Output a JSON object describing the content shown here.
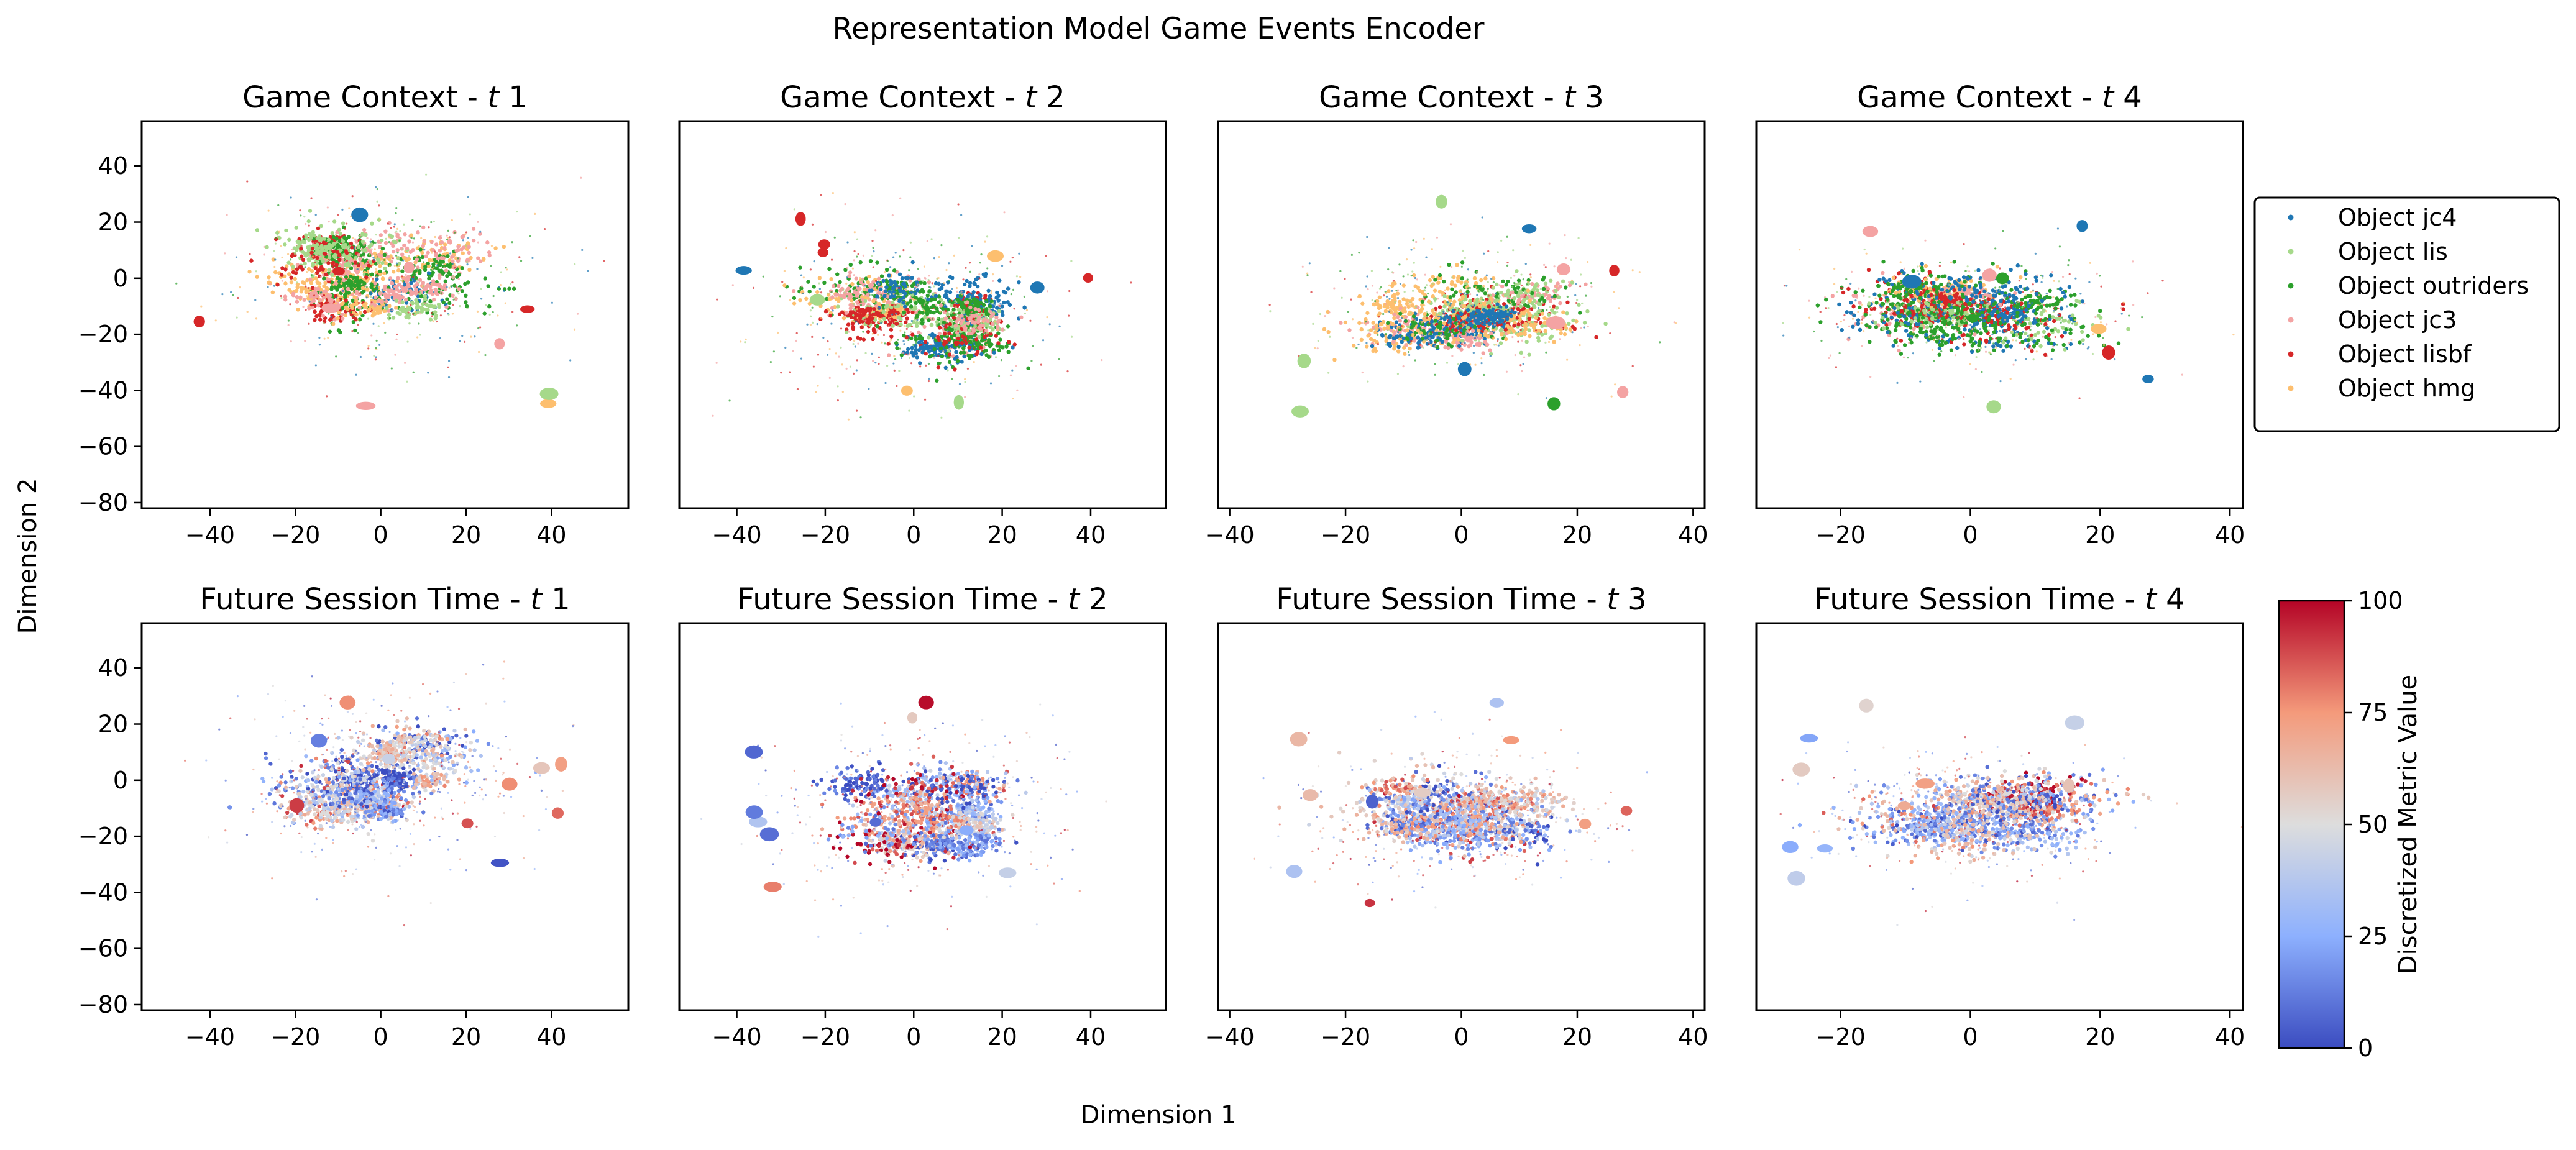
{
  "figure": {
    "title": "Representation Model Game Events Encoder",
    "xlabel": "Dimension 1",
    "ylabel": "Dimension 2"
  },
  "legend": {
    "placement": "right of top row",
    "entries": [
      {
        "label": "Object jc4",
        "color": "#1f77b4"
      },
      {
        "label": "Object lis",
        "color": "#a6d98a"
      },
      {
        "label": "Object outriders",
        "color": "#2ca02c"
      },
      {
        "label": "Object jc3",
        "color": "#f4a3a3"
      },
      {
        "label": "Object lisbf",
        "color": "#d62728"
      },
      {
        "label": "Object hmg",
        "color": "#fdbf6f"
      }
    ]
  },
  "colorbar": {
    "label": "Discretized Metric Value",
    "range": [
      0,
      100
    ],
    "ticks": [
      0,
      25,
      50,
      75,
      100
    ],
    "colormap": "coolwarm",
    "colors": [
      "#3b4cc0",
      "#aac7fd",
      "#dddddd",
      "#f7a889",
      "#b40426"
    ]
  },
  "chart_data": [
    {
      "type": "scatter",
      "title_prefix": "Game Context - ",
      "title_var": "t",
      "title_num": "1",
      "xlim": [
        -56,
        58
      ],
      "ylim": [
        -82,
        56
      ],
      "xticks": [
        -40,
        -20,
        0,
        20,
        40
      ],
      "yticks": [
        40,
        20,
        0,
        -20,
        -40,
        -60,
        -80
      ],
      "show_yticks": true,
      "color_mode": "category"
    },
    {
      "type": "scatter",
      "title_prefix": "Game Context - ",
      "title_var": "t",
      "title_num": "2",
      "xlim": [
        -53,
        57
      ],
      "ylim": [
        -82,
        56
      ],
      "xticks": [
        -40,
        -20,
        0,
        20,
        40
      ],
      "yticks": [],
      "show_yticks": false,
      "color_mode": "category"
    },
    {
      "type": "scatter",
      "title_prefix": "Game Context - ",
      "title_var": "t",
      "title_num": "3",
      "xlim": [
        -42,
        42
      ],
      "ylim": [
        -82,
        56
      ],
      "xticks": [
        -40,
        -20,
        0,
        20,
        40
      ],
      "yticks": [],
      "show_yticks": false,
      "color_mode": "category"
    },
    {
      "type": "scatter",
      "title_prefix": "Game Context - ",
      "title_var": "t",
      "title_num": "4",
      "xlim": [
        -33,
        42
      ],
      "ylim": [
        -82,
        56
      ],
      "xticks": [
        -20,
        0,
        20,
        40
      ],
      "yticks": [],
      "show_yticks": false,
      "color_mode": "category"
    },
    {
      "type": "scatter",
      "title_prefix": "Future Session Time - ",
      "title_var": "t",
      "title_num": "1",
      "xlim": [
        -56,
        58
      ],
      "ylim": [
        -82,
        56
      ],
      "xticks": [
        -40,
        -20,
        0,
        20,
        40
      ],
      "yticks": [
        40,
        20,
        0,
        -20,
        -40,
        -60,
        -80
      ],
      "show_yticks": true,
      "color_mode": "metric"
    },
    {
      "type": "scatter",
      "title_prefix": "Future Session Time - ",
      "title_var": "t",
      "title_num": "2",
      "xlim": [
        -53,
        57
      ],
      "ylim": [
        -82,
        56
      ],
      "xticks": [
        -40,
        -20,
        0,
        20,
        40
      ],
      "yticks": [],
      "show_yticks": false,
      "color_mode": "metric"
    },
    {
      "type": "scatter",
      "title_prefix": "Future Session Time - ",
      "title_var": "t",
      "title_num": "3",
      "xlim": [
        -42,
        42
      ],
      "ylim": [
        -82,
        56
      ],
      "xticks": [
        -40,
        -20,
        0,
        20,
        40
      ],
      "yticks": [],
      "show_yticks": false,
      "color_mode": "metric"
    },
    {
      "type": "scatter",
      "title_prefix": "Future Session Time - ",
      "title_var": "t",
      "title_num": "4",
      "xlim": [
        -33,
        42
      ],
      "ylim": [
        -82,
        56
      ],
      "xticks": [
        -20,
        0,
        20,
        40
      ],
      "yticks": [],
      "show_yticks": false,
      "color_mode": "metric"
    }
  ]
}
